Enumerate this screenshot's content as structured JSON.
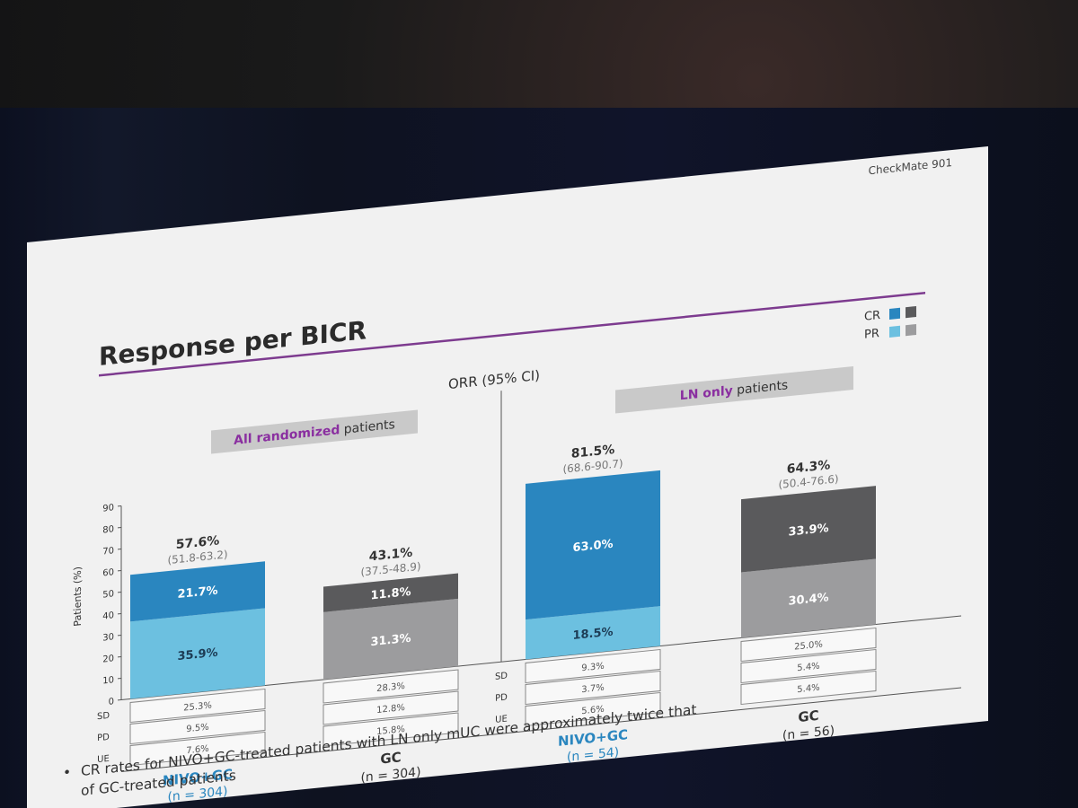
{
  "slide": {
    "brand": "CheckMate 901",
    "title": "Response per BICR",
    "orr_label": "ORR (95% CI)",
    "panel_left": {
      "highlight": "All randomized",
      "rest": " patients"
    },
    "panel_right": {
      "highlight": "LN only",
      "rest": " patients"
    },
    "legend": {
      "cr": "CR",
      "pr": "PR"
    },
    "row_labels": [
      "SD",
      "PD",
      "UE"
    ],
    "footnote_lines": [
      "CR rates for NIVO+GC-treated patients with LN only mUC were approximately twice that",
      "of GC-treated patients"
    ]
  },
  "colors": {
    "nivo_cr": "#2a86bf",
    "nivo_pr": "#6cc0e0",
    "gc_cr": "#5a5a5c",
    "gc_pr": "#9c9c9e",
    "title_bar": "#7d3b8f",
    "highlight_text": "#8a2fa0",
    "nivo_label": "#2a86bf"
  },
  "chart_data": {
    "type": "bar",
    "stacked": true,
    "ylabel": "Patients (%)",
    "ylim": [
      0,
      90
    ],
    "yticks": [
      0,
      10,
      20,
      30,
      40,
      50,
      60,
      70,
      80,
      90
    ],
    "groups": [
      {
        "arm": "NIVO+GC",
        "n": "(n = 304)",
        "orr": "57.6%",
        "ci": "(51.8-63.2)",
        "cr": 21.7,
        "pr": 35.9,
        "sd": "25.3%",
        "pd": "9.5%",
        "ue": "7.6%"
      },
      {
        "arm": "GC",
        "n": "(n = 304)",
        "orr": "43.1%",
        "ci": "(37.5-48.9)",
        "cr": 11.8,
        "pr": 31.3,
        "sd": "28.3%",
        "pd": "12.8%",
        "ue": "15.8%"
      },
      {
        "arm": "NIVO+GC",
        "n": "(n = 54)",
        "orr": "81.5%",
        "ci": "(68.6-90.7)",
        "cr": 63.0,
        "pr": 18.5,
        "sd": "9.3%",
        "pd": "3.7%",
        "ue": "5.6%"
      },
      {
        "arm": "GC",
        "n": "(n = 56)",
        "orr": "64.3%",
        "ci": "(50.4-76.6)",
        "cr": 33.9,
        "pr": 30.4,
        "sd": "25.0%",
        "pd": "5.4%",
        "ue": "5.4%"
      }
    ]
  }
}
